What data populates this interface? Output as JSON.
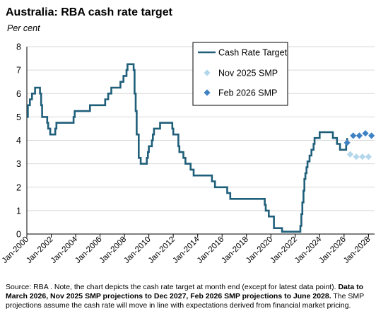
{
  "chart_data": {
    "type": "line",
    "title": "Australia: RBA cash rate target",
    "ylabel": "Per cent",
    "ylim": [
      0,
      8
    ],
    "yticks": [
      0,
      1,
      2,
      3,
      4,
      5,
      6,
      7,
      8
    ],
    "xlim": [
      2000.0,
      2028.5
    ],
    "xtick_labels": [
      "Jan-2000",
      "Jan-2002",
      "Jan-2004",
      "Jan-2006",
      "Jan-2008",
      "Jan-2010",
      "Jan-2012",
      "Jan-2014",
      "Jan-2016",
      "Jan-2018",
      "Jan-2020",
      "Jan-2022",
      "Jan-2024",
      "Jan-2026",
      "Jan-2028"
    ],
    "xtick_values": [
      2000,
      2002,
      2004,
      2006,
      2008,
      2010,
      2012,
      2014,
      2016,
      2018,
      2020,
      2022,
      2024,
      2026,
      2028
    ],
    "grid": "horizontal",
    "legend_position": "top-center",
    "colors": {
      "cash_rate": "#1f5f7a",
      "nov_smp": "#b4d7ec",
      "feb_smp": "#3f82c4",
      "grid": "#d9d9d9",
      "axis": "#000000"
    },
    "series": [
      {
        "name": "Cash Rate Target",
        "style": "line",
        "points": [
          [
            2000.0,
            5.0
          ],
          [
            2000.08,
            5.5
          ],
          [
            2000.25,
            5.75
          ],
          [
            2000.42,
            6.0
          ],
          [
            2000.67,
            6.25
          ],
          [
            2001.08,
            6.0
          ],
          [
            2001.17,
            5.5
          ],
          [
            2001.25,
            5.0
          ],
          [
            2001.67,
            4.75
          ],
          [
            2001.75,
            4.5
          ],
          [
            2001.92,
            4.25
          ],
          [
            2002.33,
            4.5
          ],
          [
            2002.42,
            4.75
          ],
          [
            2003.42,
            4.75
          ],
          [
            2003.83,
            5.0
          ],
          [
            2003.92,
            5.25
          ],
          [
            2005.17,
            5.5
          ],
          [
            2006.42,
            5.75
          ],
          [
            2006.67,
            6.0
          ],
          [
            2006.92,
            6.25
          ],
          [
            2007.67,
            6.5
          ],
          [
            2007.92,
            6.75
          ],
          [
            2008.17,
            7.0
          ],
          [
            2008.25,
            7.25
          ],
          [
            2008.75,
            7.0
          ],
          [
            2008.83,
            6.0
          ],
          [
            2008.92,
            5.25
          ],
          [
            2009.0,
            4.25
          ],
          [
            2009.17,
            3.25
          ],
          [
            2009.33,
            3.0
          ],
          [
            2009.83,
            3.25
          ],
          [
            2009.92,
            3.5
          ],
          [
            2010.0,
            3.75
          ],
          [
            2010.25,
            4.0
          ],
          [
            2010.33,
            4.25
          ],
          [
            2010.42,
            4.5
          ],
          [
            2010.92,
            4.75
          ],
          [
            2011.92,
            4.5
          ],
          [
            2012.0,
            4.25
          ],
          [
            2012.42,
            3.75
          ],
          [
            2012.5,
            3.5
          ],
          [
            2012.83,
            3.25
          ],
          [
            2013.0,
            3.0
          ],
          [
            2013.42,
            2.75
          ],
          [
            2013.67,
            2.5
          ],
          [
            2015.17,
            2.25
          ],
          [
            2015.42,
            2.0
          ],
          [
            2016.42,
            1.75
          ],
          [
            2016.67,
            1.5
          ],
          [
            2019.5,
            1.25
          ],
          [
            2019.58,
            1.0
          ],
          [
            2019.83,
            0.75
          ],
          [
            2020.25,
            0.25
          ],
          [
            2020.92,
            0.1
          ],
          [
            2022.42,
            0.35
          ],
          [
            2022.5,
            0.85
          ],
          [
            2022.58,
            1.35
          ],
          [
            2022.67,
            1.85
          ],
          [
            2022.75,
            2.35
          ],
          [
            2022.83,
            2.6
          ],
          [
            2022.92,
            2.85
          ],
          [
            2023.0,
            3.1
          ],
          [
            2023.17,
            3.35
          ],
          [
            2023.33,
            3.6
          ],
          [
            2023.5,
            3.85
          ],
          [
            2023.58,
            4.1
          ],
          [
            2024.0,
            4.35
          ],
          [
            2025.08,
            4.1
          ],
          [
            2025.42,
            3.85
          ],
          [
            2025.67,
            3.6
          ],
          [
            2026.08,
            3.6
          ],
          [
            2026.17,
            3.85
          ],
          [
            2026.25,
            4.1
          ]
        ]
      },
      {
        "name": "Nov 2025 SMP",
        "style": "marker",
        "points": [
          [
            2026.5,
            3.4
          ],
          [
            2027.0,
            3.3
          ],
          [
            2027.5,
            3.3
          ],
          [
            2028.0,
            3.3
          ]
        ]
      },
      {
        "name": "Feb 2026 SMP",
        "style": "marker",
        "points": [
          [
            2026.25,
            3.9
          ],
          [
            2026.75,
            4.2
          ],
          [
            2027.25,
            4.2
          ],
          [
            2027.75,
            4.3
          ],
          [
            2028.25,
            4.2
          ]
        ]
      }
    ]
  },
  "footer": {
    "note_plain": "Source: RBA . Note, the chart depicts the cash rate target at month end (except for latest data point). ",
    "note_bold": "Data to March 2026, Nov 2025 SMP projections to Dec 2027, Feb 2026 SMP projections to June 2028.",
    "note_tail": " The SMP projections assume the cash rate will move in line with expectations derived from financial market pricing."
  }
}
